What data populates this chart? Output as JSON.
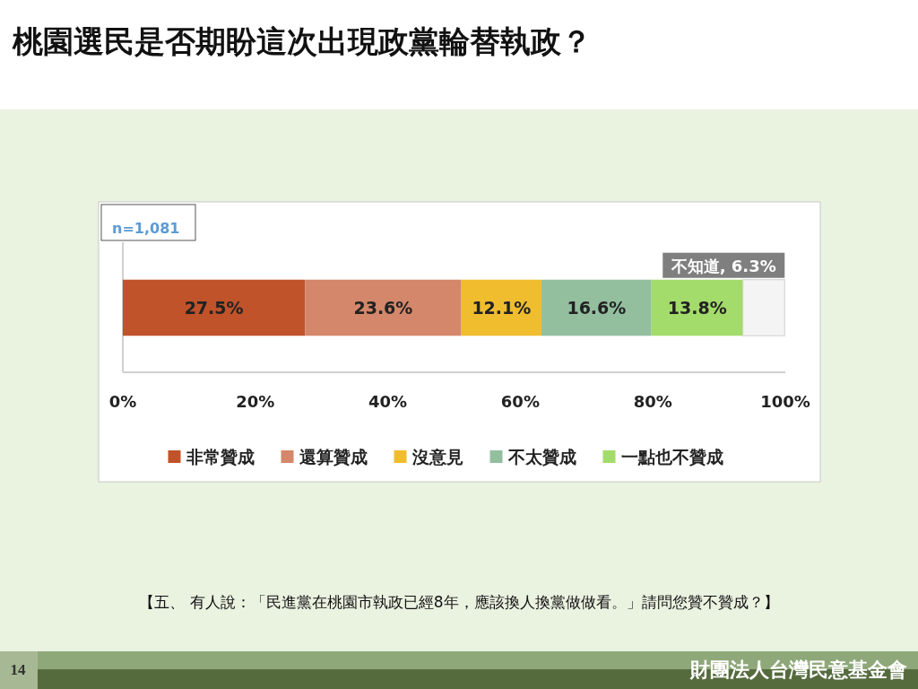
{
  "chart_data": {
    "type": "bar",
    "orientation": "horizontal",
    "stacked": true,
    "title": "桃園選民是否期盼這次出現政黨輪替執政？",
    "categories": [
      null
    ],
    "series": [
      {
        "name": "非常贊成",
        "color": "#c0532a",
        "values": [
          27.5
        ],
        "value_labels": [
          "27.5%"
        ]
      },
      {
        "name": "還算贊成",
        "color": "#d4876a",
        "values": [
          23.6
        ],
        "value_labels": [
          "23.6%"
        ]
      },
      {
        "name": "沒意見",
        "color": "#f0bd2e",
        "values": [
          12.1
        ],
        "value_labels": [
          "12.1%"
        ]
      },
      {
        "name": "不太贊成",
        "color": "#93bf9f",
        "values": [
          16.6
        ],
        "value_labels": [
          "16.6%"
        ]
      },
      {
        "name": "一點也不贊成",
        "color": "#a3dc6a",
        "values": [
          13.8
        ],
        "value_labels": [
          "13.8%"
        ]
      },
      {
        "color": "#f4f4f4",
        "values": [
          6.3
        ],
        "value_labels": [
          "不知道, 6.3%"
        ]
      }
    ],
    "xlim": [
      0,
      100
    ],
    "xticks": [
      {
        "value": 0,
        "label": "0%"
      },
      {
        "value": 20,
        "label": "20%"
      },
      {
        "value": 40,
        "label": "40%"
      },
      {
        "value": 60,
        "label": "60%"
      },
      {
        "value": 80,
        "label": "80%"
      },
      {
        "value": 100,
        "label": "100%"
      }
    ],
    "legend": "bottom",
    "annotations": [
      "n=1,081",
      "【五、 有人說：「民進黨在桃園市執政已經8年，應該換人換黨做做看。」請問您贊不贊成？】",
      "14",
      "財團法人台灣民意基金會"
    ]
  }
}
